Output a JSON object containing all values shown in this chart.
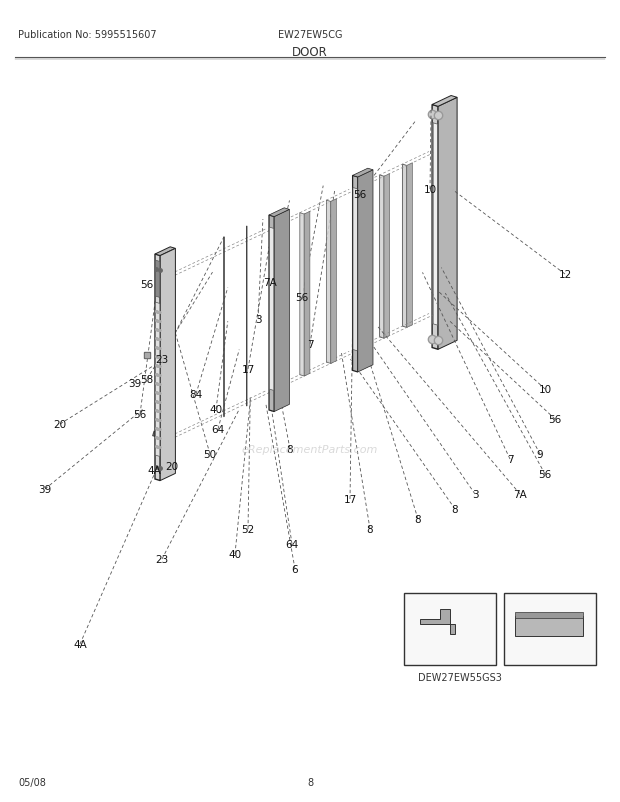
{
  "pub_no": "Publication No: 5995515607",
  "model": "EW27EW5CG",
  "title": "DOOR",
  "date": "05/08",
  "page": "8",
  "sub_model": "DEW27EW55GS3",
  "bg_color": "#ffffff",
  "fig_width": 6.2,
  "fig_height": 8.03,
  "dpi": 100,
  "watermark": "eReplacementParts.com"
}
